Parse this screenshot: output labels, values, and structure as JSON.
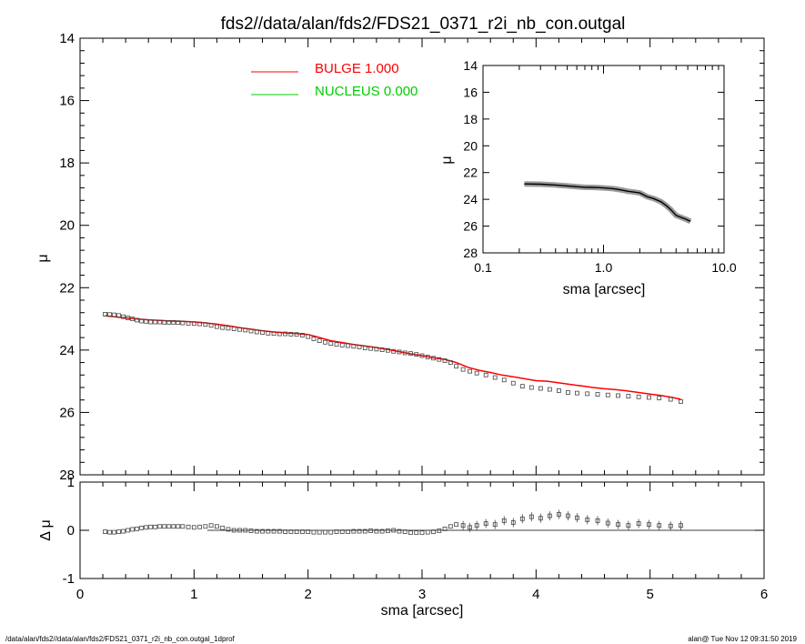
{
  "title": "fds2//data/alan/fds2/FDS21_0371_r2i_nb_con.outgal",
  "footer_left": "/data/alan/fds2//data/alan/fds2/FDS21_0371_r2i_nb_con.outgal_1dprof",
  "footer_right": "alan@  Tue Nov 12 09:31:50 2019",
  "colors": {
    "bulge": "#ff0000",
    "nucleus": "#00cc00",
    "data": "#000000"
  },
  "chart_data": [
    {
      "type": "scatter",
      "panel": "main",
      "xlabel": "",
      "ylabel": "μ",
      "xlim": [
        0,
        6
      ],
      "ylim": [
        28,
        14
      ],
      "y_inverted": true,
      "x_ticks": [
        "0",
        "1",
        "2",
        "3",
        "4",
        "5",
        "6"
      ],
      "y_ticks": [
        "14",
        "16",
        "18",
        "20",
        "22",
        "24",
        "26",
        "28"
      ],
      "legend": [
        {
          "label": "BULGE  1.000",
          "color": "#ff0000"
        },
        {
          "label": "NUCLEUS  0.000",
          "color": "#00cc00"
        }
      ],
      "series": [
        {
          "name": "data",
          "marker": "square",
          "x": [
            0.22,
            0.26,
            0.3,
            0.34,
            0.38,
            0.42,
            0.46,
            0.5,
            0.54,
            0.58,
            0.62,
            0.66,
            0.7,
            0.74,
            0.78,
            0.82,
            0.86,
            0.9,
            0.95,
            1.0,
            1.05,
            1.1,
            1.15,
            1.2,
            1.25,
            1.3,
            1.35,
            1.4,
            1.45,
            1.5,
            1.55,
            1.6,
            1.65,
            1.7,
            1.75,
            1.8,
            1.85,
            1.9,
            1.95,
            2.0,
            2.05,
            2.1,
            2.15,
            2.2,
            2.25,
            2.3,
            2.35,
            2.4,
            2.45,
            2.5,
            2.55,
            2.6,
            2.65,
            2.7,
            2.75,
            2.8,
            2.85,
            2.9,
            2.95,
            3.0,
            3.05,
            3.1,
            3.15,
            3.2,
            3.25,
            3.3,
            3.36,
            3.42,
            3.48,
            3.56,
            3.64,
            3.72,
            3.8,
            3.88,
            3.96,
            4.04,
            4.12,
            4.2,
            4.28,
            4.36,
            4.45,
            4.54,
            4.63,
            4.72,
            4.81,
            4.9,
            4.99,
            5.08,
            5.18,
            5.27
          ],
          "y": [
            22.85,
            22.86,
            22.87,
            22.89,
            22.93,
            22.97,
            23.0,
            23.04,
            23.07,
            23.08,
            23.1,
            23.1,
            23.1,
            23.11,
            23.11,
            23.11,
            23.12,
            23.13,
            23.14,
            23.15,
            23.16,
            23.18,
            23.21,
            23.25,
            23.28,
            23.3,
            23.32,
            23.34,
            23.36,
            23.39,
            23.42,
            23.44,
            23.46,
            23.47,
            23.48,
            23.48,
            23.49,
            23.5,
            23.52,
            23.57,
            23.64,
            23.7,
            23.75,
            23.79,
            23.82,
            23.84,
            23.86,
            23.88,
            23.9,
            23.93,
            23.95,
            23.97,
            23.99,
            24.01,
            24.04,
            24.06,
            24.09,
            24.11,
            24.14,
            24.18,
            24.22,
            24.26,
            24.3,
            24.34,
            24.4,
            24.52,
            24.62,
            24.68,
            24.74,
            24.8,
            24.88,
            24.96,
            25.06,
            25.16,
            25.2,
            25.23,
            25.26,
            25.3,
            25.36,
            25.38,
            25.4,
            25.42,
            25.44,
            25.46,
            25.48,
            25.5,
            25.52,
            25.54,
            25.58,
            25.65
          ]
        },
        {
          "name": "BULGE",
          "color": "#ff0000",
          "type": "line",
          "x": [
            0.22,
            0.3,
            0.4,
            0.5,
            0.6,
            0.7,
            0.8,
            0.9,
            1.0,
            1.1,
            1.2,
            1.3,
            1.4,
            1.5,
            1.6,
            1.7,
            1.8,
            1.9,
            2.0,
            2.1,
            2.2,
            2.3,
            2.4,
            2.5,
            2.6,
            2.7,
            2.8,
            2.9,
            3.0,
            3.1,
            3.2,
            3.3,
            3.4,
            3.5,
            3.6,
            3.7,
            3.8,
            3.9,
            4.0,
            4.1,
            4.2,
            4.3,
            4.4,
            4.5,
            4.6,
            4.7,
            4.8,
            4.9,
            5.0,
            5.1,
            5.2,
            5.27
          ],
          "y": [
            22.9,
            22.93,
            22.97,
            23.0,
            23.03,
            23.05,
            23.07,
            23.08,
            23.1,
            23.13,
            23.17,
            23.22,
            23.28,
            23.33,
            23.38,
            23.42,
            23.45,
            23.47,
            23.5,
            23.6,
            23.7,
            23.76,
            23.82,
            23.87,
            23.92,
            23.98,
            24.05,
            24.12,
            24.18,
            24.25,
            24.3,
            24.4,
            24.55,
            24.65,
            24.72,
            24.8,
            24.86,
            24.92,
            24.98,
            25.0,
            25.05,
            25.1,
            25.15,
            25.2,
            25.24,
            25.27,
            25.31,
            25.36,
            25.41,
            25.46,
            25.52,
            25.58
          ]
        }
      ]
    },
    {
      "type": "scatter",
      "panel": "residual",
      "xlabel": "sma [arcsec]",
      "ylabel": "Δ μ",
      "xlim": [
        0,
        6
      ],
      "ylim": [
        -1,
        1
      ],
      "x_ticks": [
        "0",
        "1",
        "2",
        "3",
        "4",
        "5",
        "6"
      ],
      "y_ticks": [
        "-1",
        "0",
        "1"
      ],
      "series": [
        {
          "name": "residual",
          "marker": "square",
          "x": [
            0.22,
            0.26,
            0.3,
            0.34,
            0.38,
            0.42,
            0.46,
            0.5,
            0.54,
            0.58,
            0.62,
            0.66,
            0.7,
            0.74,
            0.78,
            0.82,
            0.86,
            0.9,
            0.95,
            1.0,
            1.05,
            1.1,
            1.15,
            1.2,
            1.25,
            1.3,
            1.35,
            1.4,
            1.45,
            1.5,
            1.55,
            1.6,
            1.65,
            1.7,
            1.75,
            1.8,
            1.85,
            1.9,
            1.95,
            2.0,
            2.05,
            2.1,
            2.15,
            2.2,
            2.25,
            2.3,
            2.35,
            2.4,
            2.45,
            2.5,
            2.55,
            2.6,
            2.65,
            2.7,
            2.75,
            2.8,
            2.85,
            2.9,
            2.95,
            3.0,
            3.05,
            3.1,
            3.15,
            3.2,
            3.25,
            3.3,
            3.36,
            3.42,
            3.48,
            3.56,
            3.64,
            3.72,
            3.8,
            3.88,
            3.96,
            4.04,
            4.12,
            4.2,
            4.28,
            4.36,
            4.45,
            4.54,
            4.63,
            4.72,
            4.81,
            4.9,
            4.99,
            5.08,
            5.18,
            5.27
          ],
          "y": [
            -0.03,
            -0.04,
            -0.04,
            -0.03,
            -0.02,
            0.0,
            0.02,
            0.03,
            0.05,
            0.06,
            0.07,
            0.07,
            0.08,
            0.08,
            0.08,
            0.08,
            0.08,
            0.08,
            0.07,
            0.06,
            0.07,
            0.08,
            0.1,
            0.08,
            0.05,
            0.02,
            0.0,
            0.0,
            0.0,
            -0.01,
            -0.02,
            -0.02,
            -0.02,
            -0.02,
            -0.02,
            -0.03,
            -0.03,
            -0.03,
            -0.03,
            -0.03,
            -0.04,
            -0.04,
            -0.04,
            -0.04,
            -0.03,
            -0.03,
            -0.03,
            -0.02,
            -0.02,
            -0.02,
            -0.01,
            -0.02,
            -0.02,
            -0.01,
            0.0,
            -0.02,
            -0.03,
            -0.05,
            -0.05,
            -0.05,
            -0.04,
            -0.03,
            -0.01,
            0.03,
            0.08,
            0.12,
            0.1,
            0.06,
            0.1,
            0.14,
            0.12,
            0.2,
            0.16,
            0.24,
            0.28,
            0.25,
            0.3,
            0.33,
            0.3,
            0.26,
            0.22,
            0.2,
            0.15,
            0.12,
            0.1,
            0.14,
            0.12,
            0.1,
            0.09,
            0.1
          ]
        }
      ]
    },
    {
      "type": "line",
      "panel": "inset",
      "xlabel": "sma [arcsec]",
      "ylabel": "μ",
      "x_scale": "log",
      "xlim": [
        0.1,
        10.0
      ],
      "ylim": [
        28,
        14
      ],
      "y_inverted": true,
      "x_ticks": [
        "0.1",
        "1.0",
        "10.0"
      ],
      "y_ticks": [
        "14",
        "16",
        "18",
        "20",
        "22",
        "24",
        "26",
        "28"
      ],
      "series": [
        {
          "name": "data",
          "x": [
            0.22,
            0.3,
            0.4,
            0.5,
            0.6,
            0.7,
            0.8,
            0.9,
            1.0,
            1.2,
            1.4,
            1.6,
            1.8,
            2.0,
            2.3,
            2.6,
            3.0,
            3.3,
            3.6,
            4.0,
            4.4,
            4.8,
            5.27
          ],
          "y": [
            22.85,
            22.87,
            22.93,
            23.0,
            23.06,
            23.1,
            23.11,
            23.12,
            23.15,
            23.2,
            23.3,
            23.4,
            23.46,
            23.52,
            23.8,
            23.94,
            24.18,
            24.45,
            24.75,
            25.2,
            25.35,
            25.48,
            25.65
          ]
        }
      ]
    }
  ]
}
